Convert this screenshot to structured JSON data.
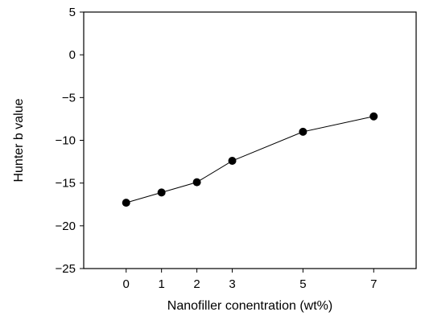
{
  "chart_data": {
    "type": "line",
    "title": "",
    "xlabel": "Nanofiller conentration (wt%)",
    "ylabel": "Hunter b value",
    "x": [
      0,
      1,
      2,
      3,
      5,
      7
    ],
    "series": [
      {
        "values": [
          -17.3,
          -16.1,
          -14.9,
          -12.4,
          -9.0,
          -7.2
        ]
      }
    ],
    "xticks": [
      0,
      1,
      2,
      3,
      5,
      7
    ],
    "xtick_labels": [
      "0",
      "1",
      "2",
      "3",
      "5",
      "7"
    ],
    "yticks": [
      5,
      0,
      -5,
      -10,
      -15,
      -20,
      -25
    ],
    "ytick_labels": [
      "5",
      "0",
      "−5",
      "−10",
      "−15",
      "−20",
      "−25"
    ],
    "xlim": [
      -1.2,
      8.2
    ],
    "ylim": [
      -25,
      5
    ],
    "grid": false,
    "legend": "none",
    "colors": {
      "line": "#000000",
      "marker": "#000000",
      "frame": "#000000"
    },
    "marker": "filled-circle"
  }
}
